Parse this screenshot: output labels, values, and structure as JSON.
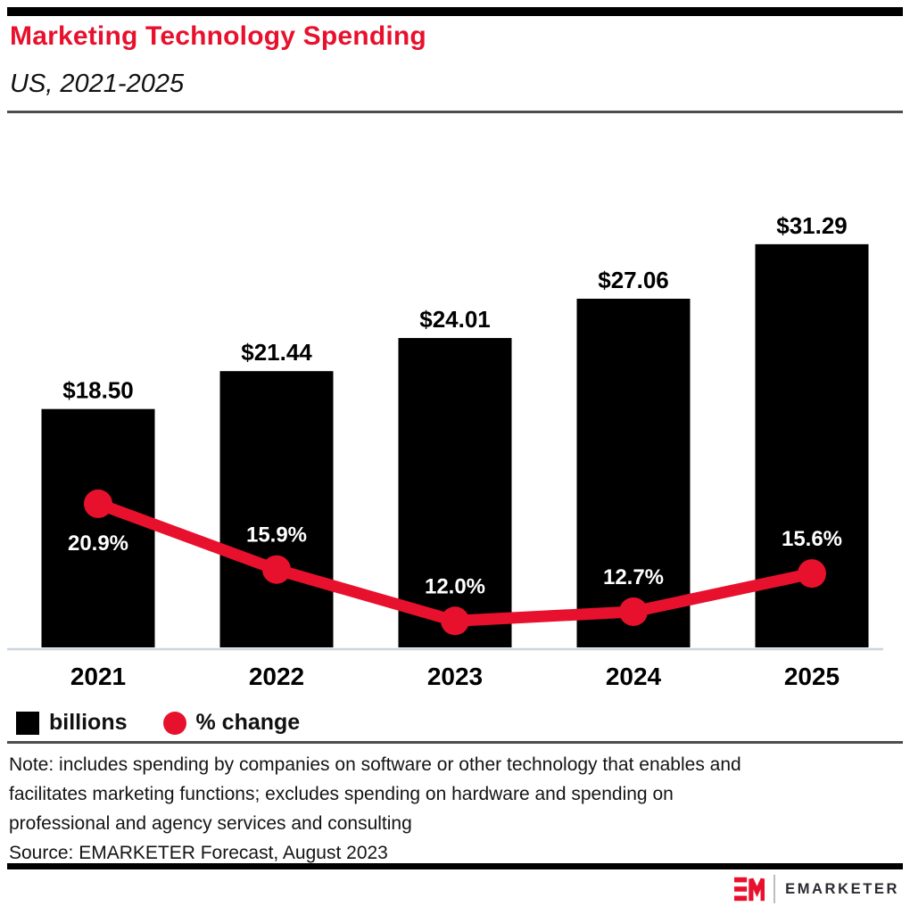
{
  "header": {
    "title": "Marketing Technology Spending",
    "subtitle": "US, 2021-2025",
    "title_color": "#e8112d"
  },
  "chart_data": {
    "type": "bar",
    "subtype": "bar-line-combo",
    "title": "Marketing Technology Spending",
    "subtitle": "US, 2021-2025",
    "categories": [
      "2021",
      "2022",
      "2023",
      "2024",
      "2025"
    ],
    "series": [
      {
        "name": "billions",
        "type": "bar",
        "color": "#000000",
        "values": [
          18.5,
          21.44,
          24.01,
          27.06,
          31.29
        ],
        "labels": [
          "$18.50",
          "$21.44",
          "$24.01",
          "$27.06",
          "$31.29"
        ]
      },
      {
        "name": "% change",
        "type": "line",
        "color": "#e8112d",
        "values": [
          20.9,
          15.9,
          12.0,
          12.7,
          15.6
        ],
        "labels": [
          "20.9%",
          "15.9%",
          "12.0%",
          "12.7%",
          "15.6%"
        ],
        "label_placement": [
          "below",
          "above",
          "above",
          "above",
          "above"
        ]
      }
    ],
    "legend_position": "bottom-left",
    "grid": false,
    "axis": {
      "x_ticks": [
        "2021",
        "2022",
        "2023",
        "2024",
        "2025"
      ],
      "y_axis_visible": false,
      "baseline_color": "#ccd4e0"
    }
  },
  "legend": {
    "bar_label": "billions",
    "line_label": "% change",
    "bar_color": "#000000",
    "line_color": "#e8112d"
  },
  "note": {
    "lines": [
      "Note: includes spending by companies on software or other technology that enables and",
      "facilitates marketing functions; excludes spending on hardware and spending on",
      "professional and agency services and consulting"
    ],
    "source": "Source: EMARKETER Forecast, August 2023"
  },
  "footer": {
    "brand": "EMARKETER",
    "logo_monogram": "EM",
    "brand_color": "#e8112d"
  }
}
